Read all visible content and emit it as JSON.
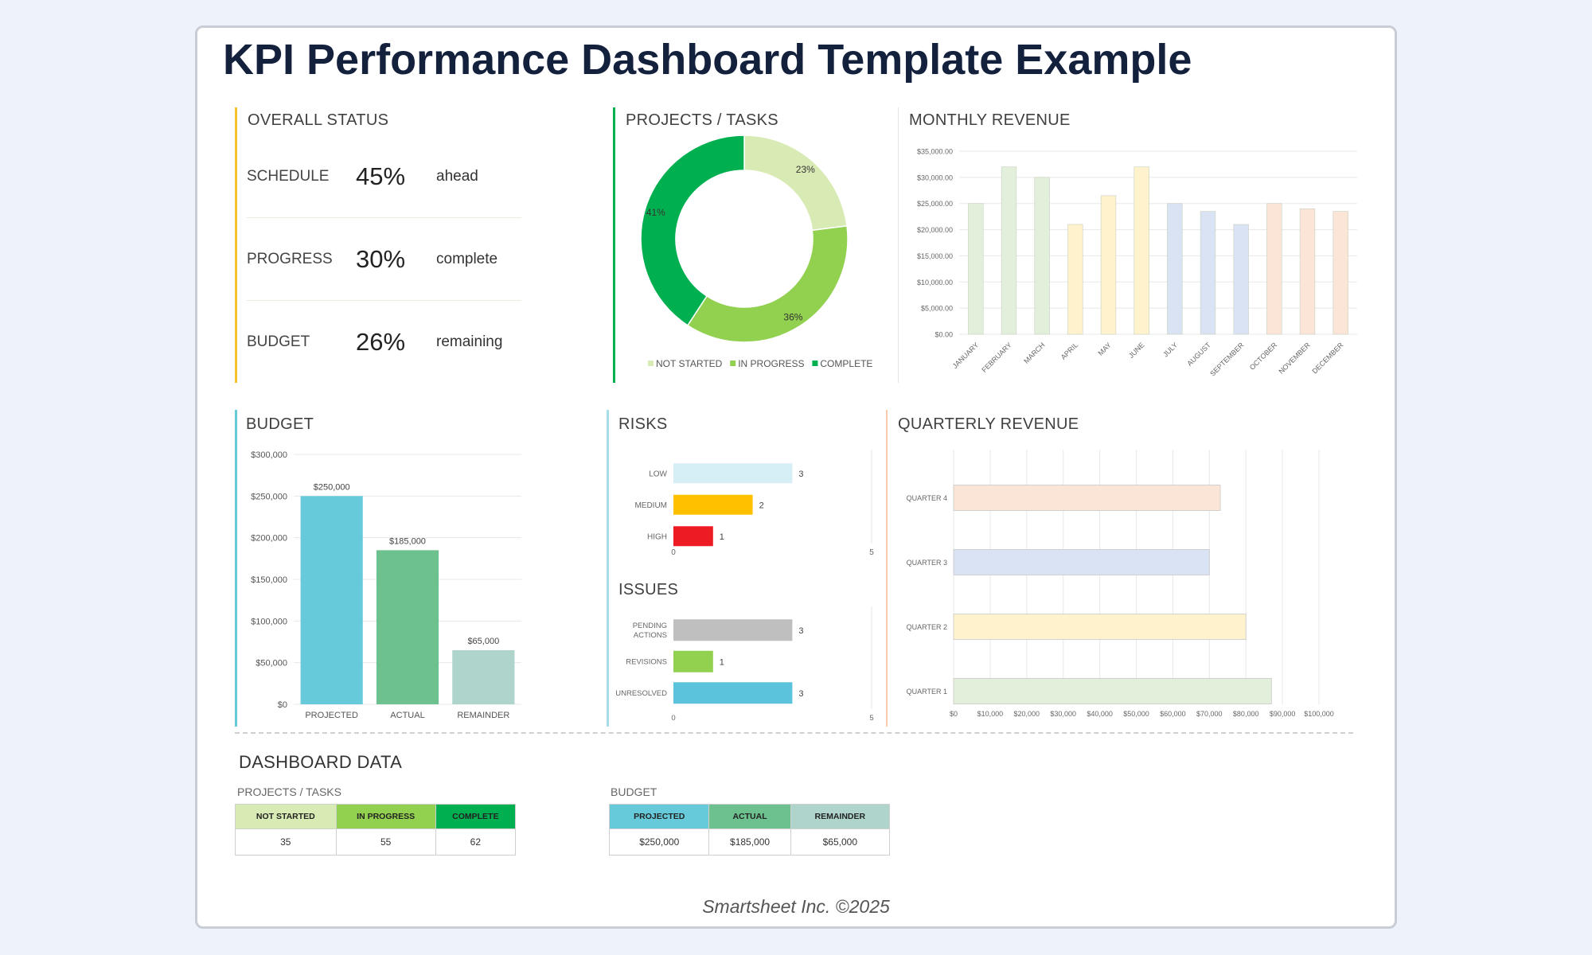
{
  "title": "KPI Performance Dashboard Template Example",
  "overall_status": {
    "title": "OVERALL STATUS",
    "rows": [
      {
        "label": "SCHEDULE",
        "value": "45%",
        "unit": "ahead"
      },
      {
        "label": "PROGRESS",
        "value": "30%",
        "unit": "complete"
      },
      {
        "label": "BUDGET",
        "value": "26%",
        "unit": "remaining"
      }
    ]
  },
  "projects_tasks": {
    "title": "PROJECTS / TASKS"
  },
  "monthly_revenue": {
    "title": "MONTHLY REVENUE"
  },
  "budget": {
    "title": "BUDGET"
  },
  "risks": {
    "title": "RISKS"
  },
  "issues": {
    "title": "ISSUES"
  },
  "quarterly_revenue": {
    "title": "QUARTERLY REVENUE"
  },
  "dashboard_data": {
    "title": "DASHBOARD DATA",
    "projects_tasks": {
      "title": "PROJECTS / TASKS",
      "headers": [
        "NOT STARTED",
        "IN PROGRESS",
        "COMPLETE"
      ],
      "values": [
        "35",
        "55",
        "62"
      ]
    },
    "budget": {
      "title": "BUDGET",
      "headers": [
        "PROJECTED",
        "ACTUAL",
        "REMAINDER"
      ],
      "values": [
        "$250,000",
        "$185,000",
        "$65,000"
      ]
    }
  },
  "footer": "Smartsheet Inc. ©2025",
  "chart_data": [
    {
      "id": "projects",
      "type": "pie",
      "labels": [
        "NOT STARTED",
        "IN PROGRESS",
        "COMPLETE"
      ],
      "values": [
        35,
        55,
        62
      ],
      "percent_labels": [
        "23%",
        "36%",
        "41%"
      ],
      "colors": [
        "#d9ebb5",
        "#92d050",
        "#00b050"
      ],
      "legend": "bottom"
    },
    {
      "id": "monthly",
      "type": "bar",
      "categories": [
        "JANUARY",
        "FEBRUARY",
        "MARCH",
        "APRIL",
        "MAY",
        "JUNE",
        "JULY",
        "AUGUST",
        "SEPTEMBER",
        "OCTOBER",
        "NOVEMBER",
        "DECEMBER"
      ],
      "values": [
        25000,
        32000,
        30000,
        21000,
        26500,
        32000,
        25000,
        23500,
        21000,
        25000,
        24000,
        23500
      ],
      "colors": [
        "#e2efda",
        "#e2efda",
        "#e2efda",
        "#fff2cc",
        "#fff2cc",
        "#fff2cc",
        "#dae3f3",
        "#dae3f3",
        "#dae3f3",
        "#fbe5d6",
        "#fbe5d6",
        "#fbe5d6"
      ],
      "ylim": [
        0,
        35000
      ],
      "yticks": [
        "$0.00",
        "$5,000.00",
        "$10,000.00",
        "$15,000.00",
        "$20,000.00",
        "$25,000.00",
        "$30,000.00",
        "$35,000.00"
      ],
      "grid": true
    },
    {
      "id": "budget",
      "type": "bar",
      "categories": [
        "PROJECTED",
        "ACTUAL",
        "REMAINDER"
      ],
      "values": [
        250000,
        185000,
        65000
      ],
      "data_labels": [
        "$250,000",
        "$185,000",
        "$65,000"
      ],
      "colors": [
        "#66cadb",
        "#6cc18e",
        "#aed4cc"
      ],
      "ylim": [
        0,
        300000
      ],
      "yticks": [
        "$0",
        "$50,000",
        "$100,000",
        "$150,000",
        "$200,000",
        "$250,000",
        "$300,000"
      ],
      "grid": true
    },
    {
      "id": "risks",
      "type": "bar",
      "orientation": "horizontal",
      "categories": [
        "LOW",
        "MEDIUM",
        "HIGH"
      ],
      "values": [
        3,
        2,
        1
      ],
      "colors": [
        "#d6eef5",
        "#ffc000",
        "#ed1c24"
      ],
      "xlim": [
        0,
        5
      ],
      "xticks": [
        "0",
        "5"
      ]
    },
    {
      "id": "issues",
      "type": "bar",
      "orientation": "horizontal",
      "categories": [
        [
          "PENDING",
          "ACTIONS"
        ],
        [
          "REVISIONS"
        ],
        [
          "UNRESOLVED"
        ]
      ],
      "values": [
        3,
        1,
        3
      ],
      "colors": [
        "#bfbfbf",
        "#92d050",
        "#5bc3dc"
      ],
      "xlim": [
        0,
        5
      ],
      "xticks": [
        "0",
        "5"
      ]
    },
    {
      "id": "quarterly",
      "type": "bar",
      "orientation": "horizontal",
      "categories": [
        "QUARTER 4",
        "QUARTER 3",
        "QUARTER 2",
        "QUARTER 1"
      ],
      "values": [
        73000,
        70000,
        80000,
        87000
      ],
      "colors": [
        "#fbe5d6",
        "#dae3f3",
        "#fff2cc",
        "#e2efda"
      ],
      "xlim": [
        0,
        100000
      ],
      "xticks": [
        "$0",
        "$10,000",
        "$20,000",
        "$30,000",
        "$40,000",
        "$50,000",
        "$60,000",
        "$70,000",
        "$80,000",
        "$90,000",
        "$100,000"
      ],
      "grid": true
    }
  ]
}
